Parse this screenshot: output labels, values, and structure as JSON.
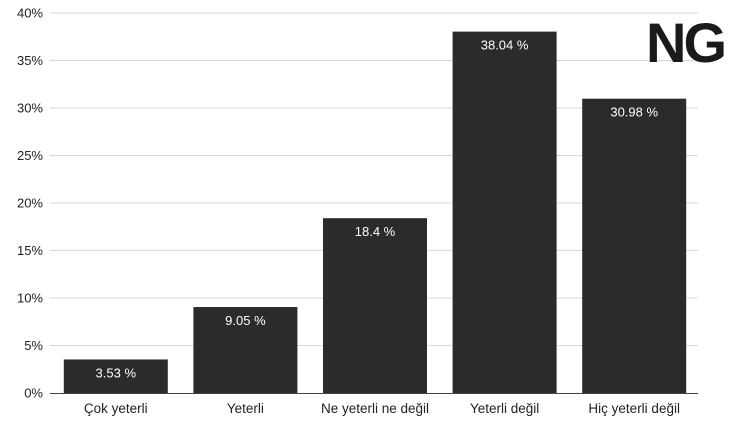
{
  "logo": {
    "text": "NG"
  },
  "chart_data": {
    "type": "bar",
    "categories": [
      "Çok yeterli",
      "Yeterli",
      "Ne yeterli ne değil",
      "Yeterli değil",
      "Hiç yeterli değil"
    ],
    "values": [
      3.53,
      9.05,
      18.4,
      38.04,
      30.98
    ],
    "data_labels": [
      "3.53 %",
      "9.05 %",
      "18.4 %",
      "38.04 %",
      "30.98 %"
    ],
    "y_ticks": [
      0,
      5,
      10,
      15,
      20,
      25,
      30,
      35,
      40
    ],
    "y_tick_labels": [
      "0%",
      "5%",
      "10%",
      "15%",
      "20%",
      "25%",
      "30%",
      "35%",
      "40%"
    ],
    "ylim": [
      0,
      40
    ],
    "grid": true,
    "bar_color": "#2b2b2b",
    "grid_color": "#d9d9d9"
  }
}
